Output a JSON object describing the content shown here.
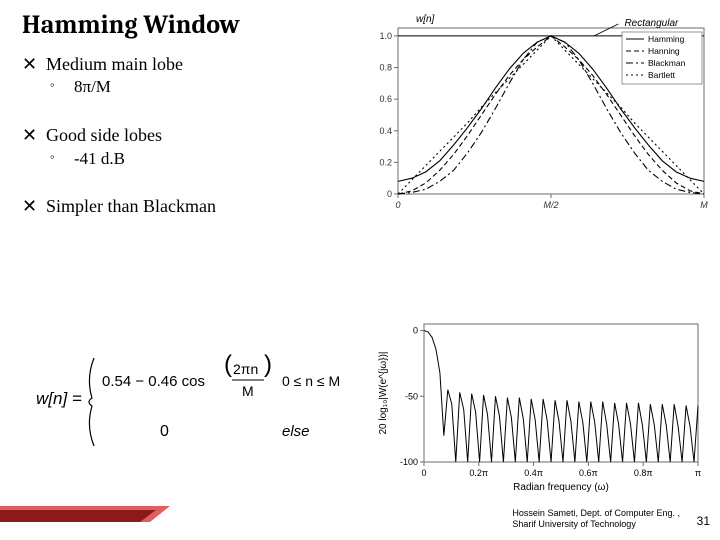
{
  "title": "Hamming Window",
  "bullets": [
    {
      "main": "Medium main lobe",
      "sub": "8π/M"
    },
    {
      "main": "Good side lobes",
      "sub": "-41 d.B"
    },
    {
      "main": "Simpler than Blackman",
      "sub": null
    }
  ],
  "formula": {
    "lhs": "w[n] =",
    "row1_expr": "0.54 − 0.46 cos",
    "row1_frac_top": "2πn",
    "row1_frac_bot": "M",
    "row1_cond": "0 ≤ n ≤ M",
    "row2_expr": "0",
    "row2_cond": "else"
  },
  "top_chart": {
    "type": "line",
    "xlabel": "",
    "ylabel": "w[n]",
    "top_annot": "Rectangular",
    "xticks": [
      "0",
      "M/2",
      "M"
    ],
    "yticks": [
      "0",
      "0.2",
      "0.4",
      "0.6",
      "0.8",
      "1.0"
    ],
    "ylim": [
      0,
      1.05
    ],
    "legend": [
      "Hamming",
      "Hanning",
      "Blackman",
      "Bartlett"
    ],
    "line_styles": [
      "solid",
      "dash",
      "dashdot",
      "dot"
    ],
    "line_color": "#000000",
    "background_color": "#ffffff",
    "axis_color": "#6b6b6b",
    "tick_fontsize": 9,
    "series": {
      "hamming": [
        0.08,
        0.1,
        0.14,
        0.21,
        0.31,
        0.42,
        0.54,
        0.67,
        0.79,
        0.89,
        0.96,
        1.0,
        0.96,
        0.89,
        0.79,
        0.67,
        0.54,
        0.42,
        0.31,
        0.21,
        0.14,
        0.1,
        0.08
      ],
      "hanning": [
        0.0,
        0.02,
        0.07,
        0.15,
        0.25,
        0.37,
        0.5,
        0.63,
        0.75,
        0.85,
        0.93,
        1.0,
        0.93,
        0.85,
        0.75,
        0.63,
        0.5,
        0.37,
        0.25,
        0.15,
        0.07,
        0.02,
        0.0
      ],
      "blackman": [
        0.0,
        0.01,
        0.03,
        0.08,
        0.15,
        0.26,
        0.39,
        0.54,
        0.7,
        0.85,
        0.96,
        1.0,
        0.96,
        0.85,
        0.7,
        0.54,
        0.39,
        0.26,
        0.15,
        0.08,
        0.03,
        0.01,
        0.0
      ],
      "bartlett": [
        0.0,
        0.09,
        0.18,
        0.27,
        0.36,
        0.45,
        0.55,
        0.64,
        0.73,
        0.82,
        0.91,
        1.0,
        0.91,
        0.82,
        0.73,
        0.64,
        0.55,
        0.45,
        0.36,
        0.27,
        0.18,
        0.09,
        0.0
      ]
    }
  },
  "bottom_chart": {
    "type": "line",
    "xlabel": "Radian frequency (ω)",
    "ylabel": "20 log₁₀|W(e^{jω})|",
    "xticks": [
      "0",
      "0.2π",
      "0.4π",
      "0.6π",
      "0.8π",
      "π"
    ],
    "yticks": [
      "-100",
      "-50",
      "0"
    ],
    "ylim": [
      -100,
      5
    ],
    "line_color": "#000000",
    "background_color": "#ffffff",
    "axis_color": "#6b6b6b",
    "tick_fontsize": 9,
    "series": [
      0,
      -1,
      -5,
      -14,
      -32,
      -80,
      -45,
      -56,
      -100,
      -47,
      -60,
      -100,
      -48,
      -62,
      -100,
      -49,
      -64,
      -100,
      -50,
      -65,
      -100,
      -51,
      -66,
      -100,
      -51,
      -67,
      -100,
      -52,
      -68,
      -100,
      -52,
      -68,
      -100,
      -53,
      -69,
      -100,
      -53,
      -69,
      -100,
      -54,
      -70,
      -100,
      -54,
      -70,
      -100,
      -54,
      -71,
      -100,
      -55,
      -71,
      -100,
      -55,
      -71,
      -100,
      -55,
      -72,
      -100,
      -56,
      -72,
      -100,
      -56,
      -72,
      -100,
      -56,
      -73,
      -100,
      -57,
      -73,
      -100,
      -57
    ]
  },
  "footer": {
    "line1": "Hossein Sameti, Dept. of Computer Eng. ,",
    "line2": "Sharif University of Technology",
    "page": "31"
  },
  "colors": {
    "red_bar_dark": "#8b1a1a",
    "red_bar_light": "#e06060"
  }
}
